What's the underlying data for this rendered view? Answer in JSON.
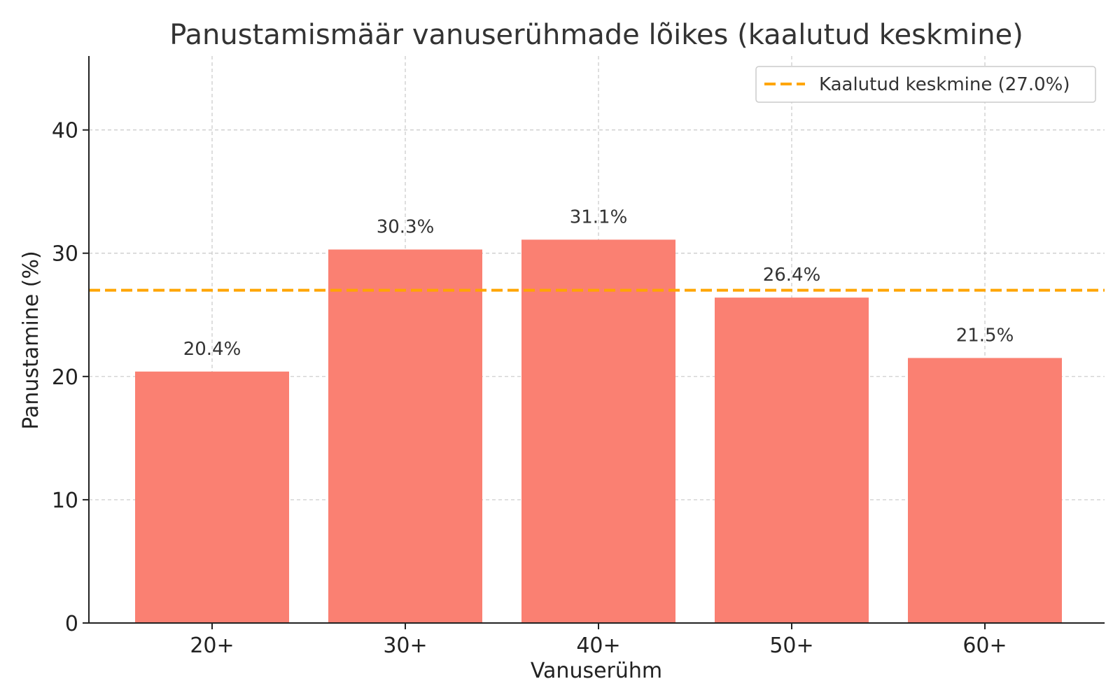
{
  "chart_data": {
    "type": "bar",
    "title": "Panustamismäär vanuserühmade lõikes (kaalutud keskmine)",
    "xlabel": "Vanuserühm",
    "ylabel": "Panustamine (%)",
    "categories": [
      "20+",
      "30+",
      "40+",
      "50+",
      "60+"
    ],
    "values": [
      20.4,
      30.3,
      31.1,
      26.4,
      21.5
    ],
    "data_labels": [
      "20.4%",
      "30.3%",
      "31.1%",
      "26.4%",
      "21.5%"
    ],
    "ylim": [
      0,
      46
    ],
    "yticks": [
      0,
      10,
      20,
      30,
      40
    ],
    "ytick_labels": [
      "0",
      "10",
      "20",
      "30",
      "40"
    ],
    "grid": true,
    "bar_color": "#fa8072",
    "reference_line": {
      "value": 27.0,
      "label": "Kaalutud keskmine (27.0%)",
      "color": "#ffa500",
      "style": "dashed"
    },
    "legend_position": "top-right"
  }
}
